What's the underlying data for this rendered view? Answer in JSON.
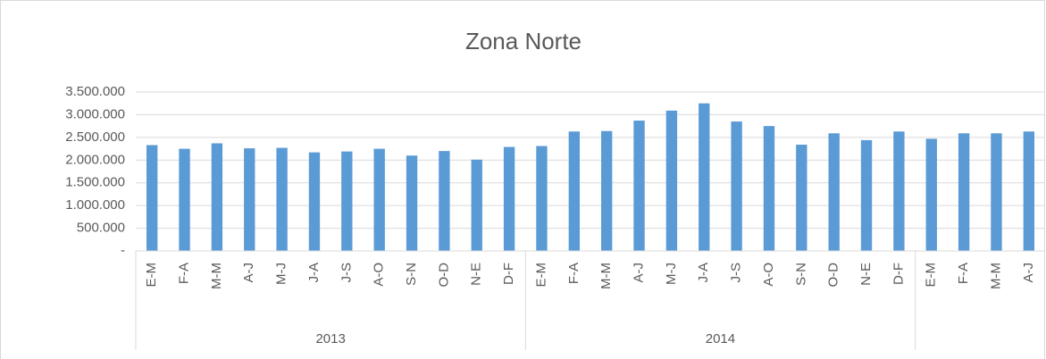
{
  "chart_data": {
    "type": "bar",
    "title": "Zona Norte",
    "category_groups": [
      {
        "label": "2013",
        "categories": [
          "E-M",
          "F-A",
          "M-M",
          "A-J",
          "M-J",
          "J-A",
          "J-S",
          "A-O",
          "S-N",
          "O-D",
          "N-E",
          "D-F"
        ]
      },
      {
        "label": "2014",
        "categories": [
          "E-M",
          "F-A",
          "M-M",
          "A-J",
          "M-J",
          "J-A",
          "J-S",
          "A-O",
          "S-N",
          "O-D",
          "N-E",
          "D-F"
        ]
      },
      {
        "label": null,
        "categories": [
          "E-M",
          "F-A",
          "M-M",
          "A-J"
        ]
      }
    ],
    "values": [
      2330000,
      2250000,
      2370000,
      2260000,
      2270000,
      2170000,
      2190000,
      2250000,
      2100000,
      2200000,
      2010000,
      2290000,
      2310000,
      2630000,
      2640000,
      2870000,
      3090000,
      3250000,
      2850000,
      2750000,
      2340000,
      2590000,
      2440000,
      2630000,
      2470000,
      2590000,
      2590000,
      2630000
    ],
    "color": "#5b9bd5",
    "ylim": [
      0,
      3500000
    ],
    "yticks": [
      {
        "value": 0,
        "label": "-"
      },
      {
        "value": 500000,
        "label": "500.000"
      },
      {
        "value": 1000000,
        "label": "1.000.000"
      },
      {
        "value": 1500000,
        "label": "1.500.000"
      },
      {
        "value": 2000000,
        "label": "2.000.000"
      },
      {
        "value": 2500000,
        "label": "2.500.000"
      },
      {
        "value": 3000000,
        "label": "3.000.000"
      },
      {
        "value": 3500000,
        "label": "3.500.000"
      }
    ],
    "grid": true
  }
}
